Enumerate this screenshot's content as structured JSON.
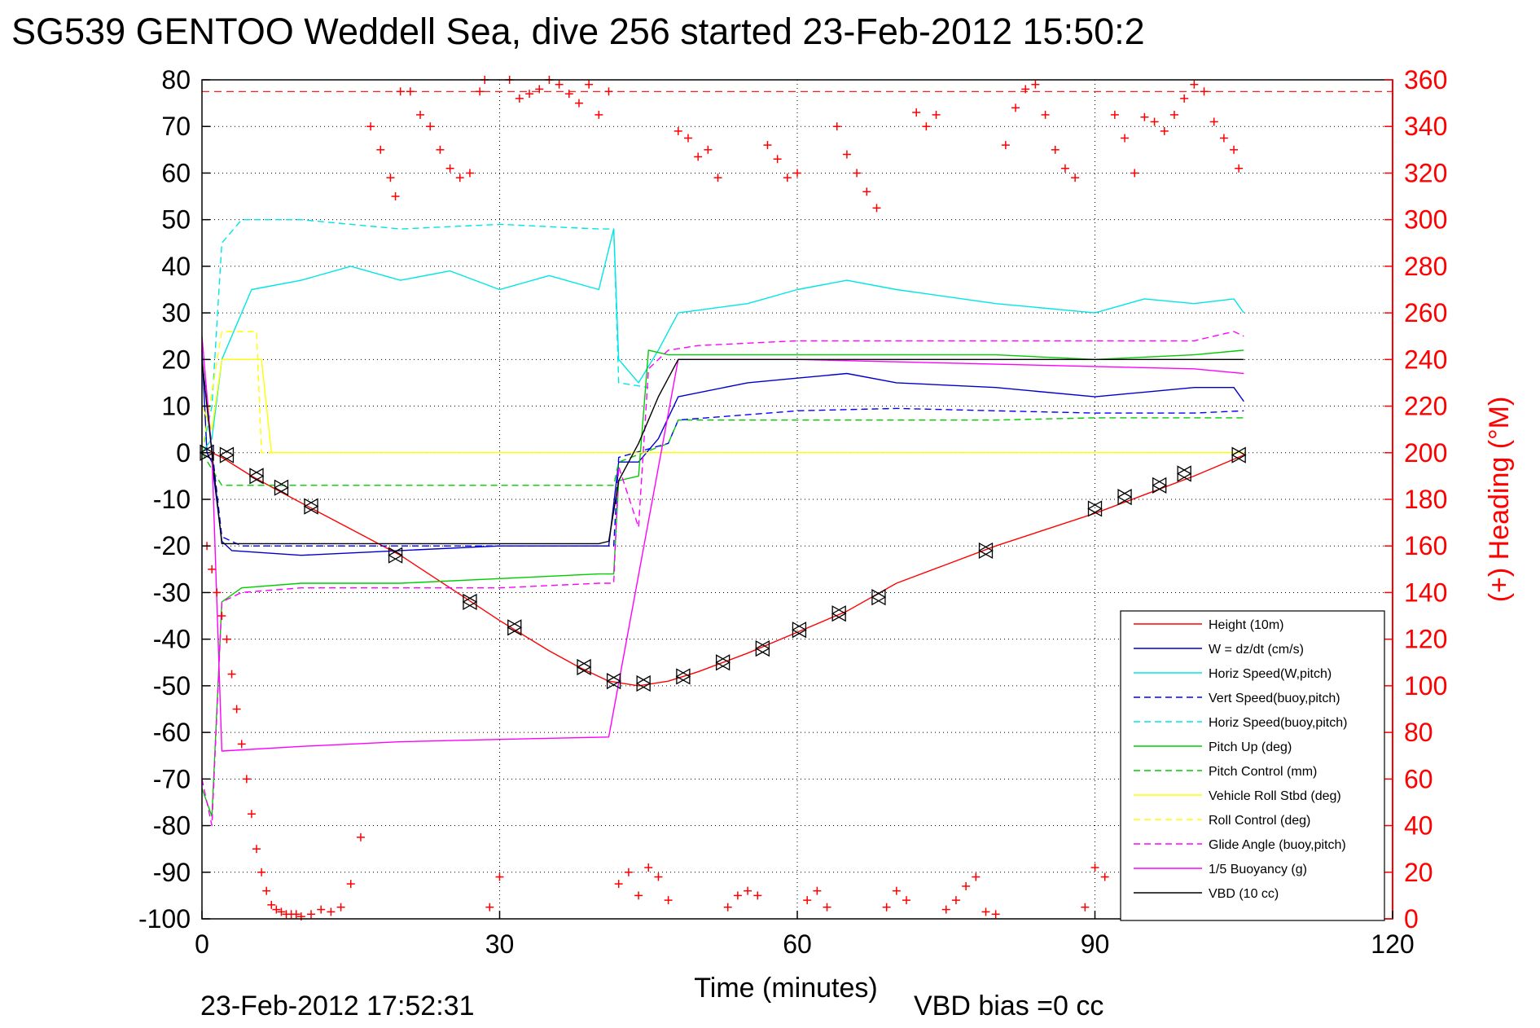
{
  "footer": {
    "timestamp": "23-Feb-2012 17:52:31",
    "vbd_bias": "VBD bias =0 cc"
  },
  "chart_data": {
    "type": "line",
    "title": "SG539 GENTOO Weddell Sea, dive 256 started 23-Feb-2012 15:50:2",
    "xlabel": "Time (minutes)",
    "ylabel": "",
    "y2label": "(+) Heading (°M)",
    "xlim": [
      0,
      120
    ],
    "ylim": [
      -100,
      80
    ],
    "y2lim": [
      0,
      360
    ],
    "x_ticks": [
      0,
      30,
      60,
      90,
      120
    ],
    "y_ticks": [
      80,
      70,
      60,
      50,
      40,
      30,
      20,
      10,
      0,
      -10,
      -20,
      -30,
      -40,
      -50,
      -60,
      -70,
      -80,
      -90,
      -100
    ],
    "y2_ticks": [
      360,
      340,
      320,
      300,
      280,
      260,
      240,
      220,
      200,
      180,
      160,
      140,
      120,
      100,
      80,
      60,
      40,
      20,
      0
    ],
    "grid": true,
    "legend_position": "bottom-right",
    "colors": {
      "height": "#ff0000",
      "w": "#0000cc",
      "horiz": "#00e5e5",
      "pitch": "#00cc00",
      "roll": "#ffff00",
      "glide": "#ff00ff",
      "vbd": "#000000",
      "heading": "#ff0000"
    },
    "series": [
      {
        "name": "Height (10m)",
        "color": "#ff0000",
        "dash": false,
        "x": [
          0,
          1,
          2,
          5,
          8,
          12,
          16,
          20,
          25,
          30,
          35,
          38,
          41,
          44,
          47,
          50,
          55,
          60,
          65,
          70,
          75,
          80,
          85,
          90,
          95,
          100,
          105
        ],
        "y": [
          0,
          0,
          -1,
          -5,
          -8.5,
          -13,
          -17.5,
          -22,
          -29,
          -36,
          -42.5,
          -46,
          -49,
          -50,
          -49,
          -47,
          -43,
          -38.5,
          -34,
          -28,
          -24,
          -20,
          -16.5,
          -13,
          -9,
          -5,
          -0.5
        ]
      },
      {
        "name": "W = dz/dt (cm/s)",
        "color": "#0000cc",
        "dash": false,
        "x": [
          0,
          0.5,
          1,
          2,
          3,
          10,
          20,
          30,
          41,
          42,
          44,
          46,
          48,
          55,
          60,
          65,
          70,
          80,
          90,
          95,
          100,
          104,
          105
        ],
        "y": [
          22,
          0,
          -2,
          -19,
          -21,
          -22,
          -21,
          -20,
          -20,
          -2,
          -2,
          3,
          12,
          15,
          16,
          17,
          15,
          14,
          12,
          13,
          14,
          14,
          11
        ]
      },
      {
        "name": "Horiz Speed(W,pitch)",
        "color": "#00e5e5",
        "dash": false,
        "x": [
          0,
          1,
          2,
          5,
          10,
          15,
          20,
          25,
          30,
          35,
          40,
          41.5,
          42,
          44,
          46,
          48,
          55,
          60,
          65,
          70,
          80,
          90,
          95,
          100,
          104,
          105
        ],
        "y": [
          0,
          3,
          20,
          35,
          37,
          40,
          37,
          39,
          35,
          38,
          35,
          48,
          20,
          15,
          22,
          30,
          32,
          35,
          37,
          35,
          32,
          30,
          33,
          32,
          33,
          30
        ]
      },
      {
        "name": "Vert Speed(buoy,pitch)",
        "color": "#0000ff",
        "dash": true,
        "x": [
          0,
          2,
          4,
          40,
          41.5,
          42,
          47,
          48,
          60,
          70,
          80,
          90,
          100,
          105
        ],
        "y": [
          20,
          -18,
          -20,
          -20,
          -20,
          -1,
          2,
          7,
          9,
          9.5,
          9,
          8.5,
          8.5,
          9
        ]
      },
      {
        "name": "Horiz Speed(buoy,pitch)",
        "color": "#00e5e5",
        "dash": true,
        "x": [
          0,
          1,
          2,
          4,
          10,
          20,
          30,
          40,
          41.5,
          42,
          45
        ],
        "y": [
          0,
          10,
          45,
          50,
          50,
          48,
          49,
          48,
          48,
          15,
          14
        ]
      },
      {
        "name": "Pitch Up (deg)",
        "color": "#00cc00",
        "dash": false,
        "x": [
          0,
          1,
          2,
          4,
          10,
          20,
          30,
          40,
          41.5,
          42,
          44,
          45,
          47,
          50,
          60,
          70,
          80,
          90,
          100,
          105
        ],
        "y": [
          -72,
          -78,
          -32,
          -29,
          -28,
          -28,
          -27,
          -26,
          -26,
          -6,
          -5,
          22,
          21,
          21,
          21,
          21,
          21,
          20,
          21,
          22
        ]
      },
      {
        "name": "Pitch Control (mm)",
        "color": "#00cc00",
        "dash": true,
        "x": [
          0,
          2,
          5,
          40,
          41.5,
          42,
          47,
          48,
          60,
          70,
          80,
          90,
          100,
          105
        ],
        "y": [
          0,
          -7,
          -7,
          -7,
          -7,
          -2,
          2,
          7,
          7,
          7,
          7,
          7.5,
          7.5,
          7.5
        ]
      },
      {
        "name": "Vehicle Roll Stbd (deg)",
        "color": "#ffff00",
        "dash": false,
        "x": [
          0,
          1,
          2,
          6,
          7,
          10,
          20,
          30,
          40,
          41,
          45,
          50,
          60,
          70,
          80,
          90,
          100,
          105
        ],
        "y": [
          10,
          5,
          20,
          20,
          0,
          0,
          0,
          0,
          0,
          0,
          0,
          0,
          0,
          0,
          0,
          0,
          0,
          0
        ]
      },
      {
        "name": "Roll Control (deg)",
        "color": "#ffff00",
        "dash": true,
        "x": [
          0,
          2,
          5.5,
          6,
          20,
          40,
          50,
          60,
          70,
          80,
          90,
          100,
          105
        ],
        "y": [
          0,
          26,
          26,
          0,
          0,
          0,
          0,
          0,
          0,
          0,
          0,
          0,
          0
        ]
      },
      {
        "name": "Glide Angle (buoy,pitch)",
        "color": "#ff00ff",
        "dash": true,
        "x": [
          0,
          1,
          2,
          4,
          10,
          20,
          30,
          40,
          41.5,
          42,
          44,
          45,
          47,
          50,
          60,
          70,
          80,
          90,
          100,
          104,
          105
        ],
        "y": [
          -70,
          -80,
          -32,
          -30,
          -29,
          -29,
          -29,
          -28,
          -28,
          -3,
          -16,
          18,
          22,
          23,
          24,
          24,
          24,
          24,
          24,
          26,
          25
        ]
      },
      {
        "name": "1/5 Buoyancy (g)",
        "color": "#ff00ff",
        "dash": false,
        "x": [
          0,
          1,
          2,
          10,
          20,
          30,
          41,
          48,
          60,
          80,
          100,
          105
        ],
        "y": [
          25,
          0,
          -64,
          -63,
          -62,
          -61.5,
          -61,
          20,
          20,
          19,
          18,
          17
        ]
      },
      {
        "name": "VBD (10 cc)",
        "color": "#000000",
        "dash": false,
        "x": [
          0,
          1,
          2,
          10,
          20,
          30,
          40,
          41,
          42,
          44,
          46,
          48,
          60,
          80,
          100,
          105
        ],
        "y": [
          20,
          0,
          -19.5,
          -19.5,
          -19.5,
          -19.5,
          -19.5,
          -19,
          -6,
          2,
          12,
          20,
          20,
          20,
          20,
          20
        ]
      }
    ],
    "height_markers": {
      "x": [
        0.5,
        2.5,
        5.5,
        8,
        11,
        19.5,
        27,
        31.5,
        38.5,
        41.5,
        44.5,
        48.5,
        52.5,
        56.5,
        60.2,
        64.2,
        68.2,
        79,
        90,
        93,
        96.5,
        99,
        104.5
      ],
      "y": [
        0,
        -0.5,
        -5,
        -7.5,
        -11.5,
        -22,
        -32,
        -37.5,
        -46,
        -49,
        -49.5,
        -48,
        -45,
        -42,
        -38,
        -34.5,
        -31,
        -21,
        -12,
        -9.5,
        -7,
        -4.5,
        -0.5
      ]
    },
    "heading_reference": 355,
    "heading": {
      "name": "Heading",
      "x": [
        0.5,
        1,
        1.5,
        2,
        2.5,
        3,
        3.5,
        4,
        4.5,
        5,
        5.5,
        6,
        6.5,
        7,
        7.5,
        8,
        8.5,
        9,
        9.5,
        10,
        11,
        12,
        13,
        14,
        15,
        16,
        17,
        18,
        19,
        19.5,
        20,
        21,
        22,
        23,
        24,
        25,
        26,
        27,
        28,
        28.5,
        29,
        30,
        31,
        32,
        33,
        34,
        35,
        36,
        37,
        38,
        39,
        40,
        41,
        42,
        43,
        44,
        45,
        46,
        47,
        48,
        49,
        50,
        51,
        52,
        53,
        54,
        55,
        56,
        57,
        58,
        59,
        60,
        61,
        62,
        63,
        64,
        65,
        66,
        67,
        68,
        69,
        70,
        71,
        72,
        73,
        74,
        75,
        76,
        77,
        78,
        79,
        80,
        81,
        82,
        83,
        84,
        85,
        86,
        87,
        88,
        89,
        90,
        91,
        92,
        93,
        94,
        95,
        96,
        97,
        98,
        99,
        100,
        101,
        102,
        103,
        104,
        104.5
      ],
      "y": [
        160,
        150,
        140,
        130,
        120,
        105,
        90,
        75,
        60,
        45,
        30,
        20,
        12,
        6,
        4,
        3,
        2,
        2,
        2,
        1,
        2,
        4,
        3,
        5,
        15,
        35,
        340,
        330,
        318,
        310,
        355,
        355,
        345,
        340,
        330,
        322,
        318,
        320,
        355,
        360,
        5,
        18,
        360,
        352,
        354,
        356,
        360,
        358,
        354,
        350,
        358,
        345,
        355,
        15,
        20,
        10,
        22,
        18,
        8,
        338,
        335,
        327,
        330,
        318,
        5,
        10,
        12,
        10,
        332,
        326,
        318,
        320,
        8,
        12,
        5,
        340,
        328,
        320,
        312,
        305,
        5,
        12,
        8,
        346,
        340,
        345,
        4,
        8,
        14,
        18,
        3,
        2,
        332,
        348,
        356,
        358,
        345,
        330,
        322,
        318,
        5,
        22,
        18,
        345,
        335,
        320,
        344,
        342,
        338,
        345,
        352,
        358,
        355,
        342,
        335,
        330,
        322
      ]
    }
  }
}
